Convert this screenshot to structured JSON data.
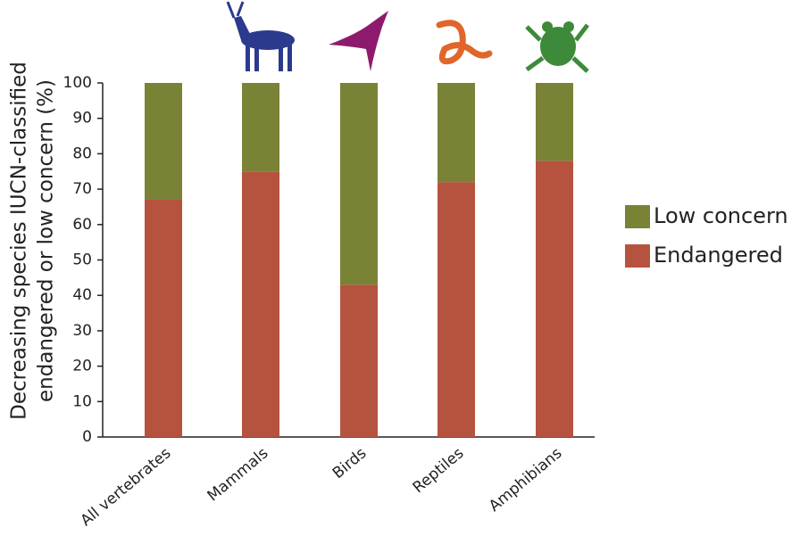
{
  "chart_data": {
    "type": "stacked_bar",
    "y_label": [
      "Decreasing species IUCN-classified",
      "endangered or low concern (%)"
    ],
    "categories": [
      "All vertebrates",
      "Mammals",
      "Birds",
      "Reptiles",
      "Amphibians"
    ],
    "series": [
      {
        "name": "Endangered",
        "color": "#b5533f",
        "values": [
          67,
          75,
          43,
          72,
          78
        ]
      },
      {
        "name": "Low concern",
        "color": "#7a8236",
        "values": [
          33,
          25,
          57,
          28,
          22
        ]
      }
    ],
    "ylim": [
      0,
      100
    ],
    "yticks": [
      0,
      10,
      20,
      30,
      40,
      50,
      60,
      70,
      80,
      90,
      100
    ],
    "grid": false
  }
}
